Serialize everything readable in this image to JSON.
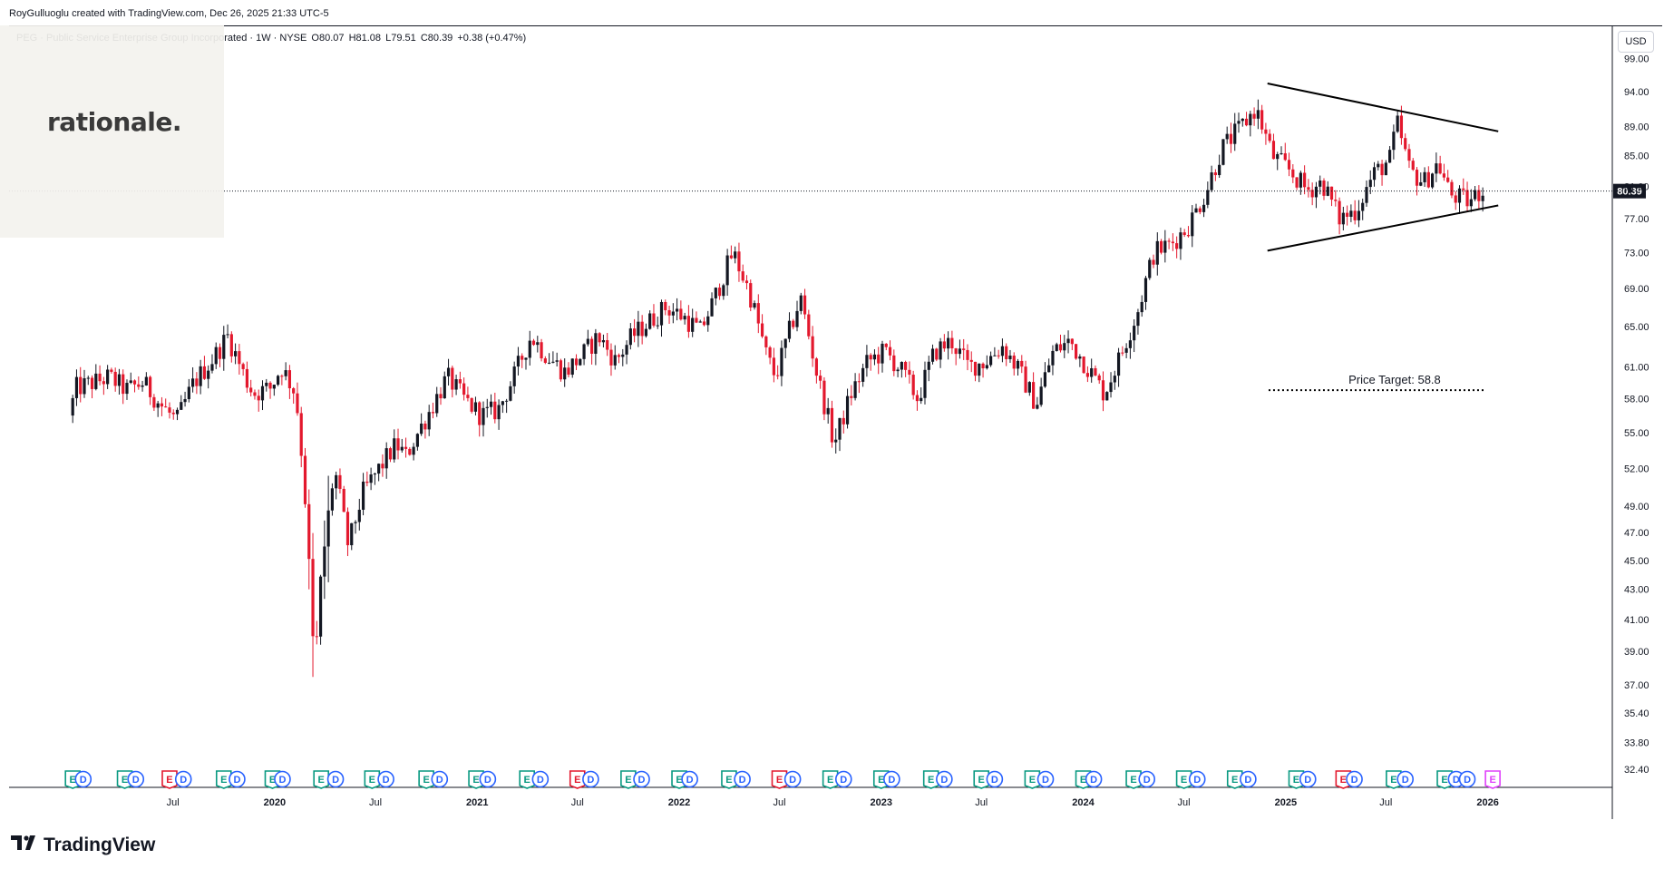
{
  "header": {
    "credit": "RoyGulluoglu created with TradingView.com, Dec 26, 2025 21:33 UTC-5"
  },
  "symbol": {
    "name": "PEG · Public Service Enterprise Group Incorporated · 1W · NYSE",
    "open": "O80.07",
    "high": "H81.08",
    "low": "L79.51",
    "close": "C80.39",
    "change": "+0.38 (+0.47%)"
  },
  "logo": {
    "text": "rationale."
  },
  "currency_button": "USD",
  "footer": {
    "brand": "TradingView"
  },
  "colors": {
    "up": "#131722",
    "down": "#e3182d",
    "grid": "#e0e3eb"
  },
  "chart_data": {
    "type": "candlestick",
    "interval": "1W",
    "yscale": "log",
    "ylim": [
      31.5,
      104
    ],
    "last_price": "80.39",
    "y_ticks": [
      "99.00",
      "94.00",
      "89.00",
      "85.00",
      "81.00",
      "77.00",
      "73.00",
      "69.00",
      "65.00",
      "61.00",
      "58.00",
      "55.00",
      "52.00",
      "49.00",
      "47.00",
      "45.00",
      "43.00",
      "41.00",
      "39.00",
      "37.00",
      "35.40",
      "33.80",
      "32.40"
    ],
    "x_ticks": [
      "Jul",
      "2020",
      "Jul",
      "2021",
      "Jul",
      "2022",
      "Jul",
      "2023",
      "Jul",
      "2024",
      "Jul",
      "2025",
      "Jul",
      "2026"
    ],
    "anchors": [
      [
        "2019-01-01",
        56.5
      ],
      [
        "2019-01-15",
        59.0
      ],
      [
        "2019-02-15",
        59.5
      ],
      [
        "2019-03-15",
        60.0
      ],
      [
        "2019-04-15",
        58.8
      ],
      [
        "2019-05-15",
        59.5
      ],
      [
        "2019-06-15",
        57.5
      ],
      [
        "2019-07-15",
        56.0
      ],
      [
        "2019-08-15",
        59.5
      ],
      [
        "2019-09-15",
        61.5
      ],
      [
        "2019-10-15",
        64.0
      ],
      [
        "2019-11-15",
        60.0
      ],
      [
        "2019-12-01",
        58.5
      ],
      [
        "2020-01-01",
        59.0
      ],
      [
        "2020-01-20",
        61.0
      ],
      [
        "2020-02-15",
        58.5
      ],
      [
        "2020-03-01",
        51.0
      ],
      [
        "2020-03-20",
        37.5
      ],
      [
        "2020-04-01",
        44.0
      ],
      [
        "2020-04-25",
        52.0
      ],
      [
        "2020-05-20",
        46.0
      ],
      [
        "2020-06-15",
        50.0
      ],
      [
        "2020-07-15",
        52.0
      ],
      [
        "2020-08-15",
        54.0
      ],
      [
        "2020-09-01",
        53.0
      ],
      [
        "2020-10-15",
        57.0
      ],
      [
        "2020-11-15",
        60.0
      ],
      [
        "2020-12-15",
        58.0
      ],
      [
        "2021-01-15",
        56.5
      ],
      [
        "2021-02-15",
        57.0
      ],
      [
        "2021-03-15",
        60.0
      ],
      [
        "2021-04-15",
        64.0
      ],
      [
        "2021-05-15",
        62.0
      ],
      [
        "2021-06-15",
        60.5
      ],
      [
        "2021-07-15",
        62.0
      ],
      [
        "2021-08-15",
        64.0
      ],
      [
        "2021-09-15",
        61.5
      ],
      [
        "2021-10-15",
        64.0
      ],
      [
        "2021-11-15",
        65.5
      ],
      [
        "2021-12-15",
        67.0
      ],
      [
        "2022-01-15",
        66.0
      ],
      [
        "2022-02-15",
        64.5
      ],
      [
        "2022-03-10",
        67.5
      ],
      [
        "2022-04-15",
        73.0
      ],
      [
        "2022-05-15",
        68.5
      ],
      [
        "2022-06-15",
        62.0
      ],
      [
        "2022-07-01",
        60.0
      ],
      [
        "2022-08-15",
        68.0
      ],
      [
        "2022-09-15",
        60.0
      ],
      [
        "2022-10-15",
        54.0
      ],
      [
        "2022-11-15",
        58.5
      ],
      [
        "2022-12-15",
        61.5
      ],
      [
        "2023-01-15",
        62.5
      ],
      [
        "2023-02-15",
        60.5
      ],
      [
        "2023-03-15",
        58.0
      ],
      [
        "2023-04-15",
        62.5
      ],
      [
        "2023-05-15",
        63.5
      ],
      [
        "2023-06-15",
        61.0
      ],
      [
        "2023-07-15",
        61.5
      ],
      [
        "2023-08-15",
        63.0
      ],
      [
        "2023-09-15",
        60.5
      ],
      [
        "2023-10-15",
        57.5
      ],
      [
        "2023-11-15",
        62.5
      ],
      [
        "2023-12-15",
        63.5
      ],
      [
        "2024-01-15",
        61.0
      ],
      [
        "2024-02-15",
        58.5
      ],
      [
        "2024-03-15",
        62.0
      ],
      [
        "2024-04-15",
        66.5
      ],
      [
        "2024-05-15",
        73.0
      ],
      [
        "2024-06-15",
        74.0
      ],
      [
        "2024-07-15",
        76.0
      ],
      [
        "2024-08-15",
        80.0
      ],
      [
        "2024-09-15",
        86.0
      ],
      [
        "2024-10-15",
        88.5
      ],
      [
        "2024-11-15",
        91.5
      ],
      [
        "2024-12-15",
        85.0
      ],
      [
        "2025-01-15",
        83.0
      ],
      [
        "2025-02-15",
        80.5
      ],
      [
        "2025-03-15",
        81.5
      ],
      [
        "2025-04-15",
        77.0
      ],
      [
        "2025-05-15",
        78.0
      ],
      [
        "2025-06-15",
        82.5
      ],
      [
        "2025-07-15",
        84.5
      ],
      [
        "2025-07-28",
        89.5
      ],
      [
        "2025-08-20",
        83.0
      ],
      [
        "2025-09-15",
        81.5
      ],
      [
        "2025-10-10",
        84.0
      ],
      [
        "2025-11-01",
        80.0
      ],
      [
        "2025-12-05",
        79.0
      ],
      [
        "2025-12-26",
        80.39
      ]
    ],
    "annotations": {
      "price_target": {
        "label": "Price Target: 58.8",
        "value": 58.8,
        "x_range": [
          "2024-12-01",
          "2025-12-26"
        ]
      },
      "triangle_upper": [
        [
          "2024-11-29",
          95.2
        ],
        [
          "2026-01-20",
          88.3
        ]
      ],
      "triangle_lower": [
        [
          "2024-11-29",
          73.2
        ],
        [
          "2026-01-20",
          78.6
        ]
      ]
    },
    "events": [
      [
        "E",
        "2019-01-01"
      ],
      [
        "D",
        "2019-01-20"
      ],
      [
        "E",
        "2019-04-05"
      ],
      [
        "D",
        "2019-04-25"
      ],
      [
        "E",
        "2019-06-25"
      ],
      [
        "D",
        "2019-07-20"
      ],
      [
        "E",
        "2019-10-01"
      ],
      [
        "D",
        "2019-10-25"
      ],
      [
        "E",
        "2019-12-28"
      ],
      [
        "D",
        "2020-01-15"
      ],
      [
        "E",
        "2020-03-25"
      ],
      [
        "D",
        "2020-04-20"
      ],
      [
        "E",
        "2020-06-25"
      ],
      [
        "D",
        "2020-07-20"
      ],
      [
        "E",
        "2020-10-01"
      ],
      [
        "D",
        "2020-10-25"
      ],
      [
        "E",
        "2020-12-30"
      ],
      [
        "D",
        "2021-01-20"
      ],
      [
        "E",
        "2021-04-01"
      ],
      [
        "D",
        "2021-04-25"
      ],
      [
        "E",
        "2021-07-01"
      ],
      [
        "D",
        "2021-07-25"
      ],
      [
        "E",
        "2021-10-01"
      ],
      [
        "D",
        "2021-10-25"
      ],
      [
        "E",
        "2022-01-01"
      ],
      [
        "D",
        "2022-01-20"
      ],
      [
        "E",
        "2022-04-01"
      ],
      [
        "D",
        "2022-04-25"
      ],
      [
        "E",
        "2022-07-01"
      ],
      [
        "D",
        "2022-07-25"
      ],
      [
        "E",
        "2022-10-01"
      ],
      [
        "D",
        "2022-10-25"
      ],
      [
        "E",
        "2023-01-01"
      ],
      [
        "D",
        "2023-01-20"
      ],
      [
        "E",
        "2023-04-01"
      ],
      [
        "D",
        "2023-04-25"
      ],
      [
        "E",
        "2023-07-01"
      ],
      [
        "D",
        "2023-07-25"
      ],
      [
        "E",
        "2023-10-01"
      ],
      [
        "D",
        "2023-10-25"
      ],
      [
        "E",
        "2024-01-01"
      ],
      [
        "D",
        "2024-01-20"
      ],
      [
        "E",
        "2024-04-01"
      ],
      [
        "D",
        "2024-04-25"
      ],
      [
        "E",
        "2024-07-01"
      ],
      [
        "D",
        "2024-07-25"
      ],
      [
        "E",
        "2024-10-01"
      ],
      [
        "D",
        "2024-10-25"
      ],
      [
        "E",
        "2025-01-20"
      ],
      [
        "D",
        "2025-02-10"
      ],
      [
        "E",
        "2025-04-15"
      ],
      [
        "D",
        "2025-05-05"
      ],
      [
        "E",
        "2025-07-15"
      ],
      [
        "D",
        "2025-08-05"
      ],
      [
        "E",
        "2025-10-15"
      ],
      [
        "D",
        "2025-11-05"
      ],
      [
        "D",
        "2025-11-25"
      ],
      [
        "E",
        "2026-01-10"
      ]
    ],
    "event_colors": {
      "E": [
        "#089981",
        "#089981",
        "#e3182d",
        "#089981",
        "#089981",
        "#089981",
        "#089981",
        "#089981",
        "#089981",
        "#089981",
        "#e3182d",
        "#089981",
        "#089981",
        "#089981",
        "#e3182d",
        "#089981",
        "#089981",
        "#089981",
        "#089981",
        "#089981",
        "#089981",
        "#089981",
        "#089981",
        "#089981",
        "#089981",
        "#e3182d",
        "#089981",
        "#089981",
        "#e040fb"
      ],
      "D": "#2962ff"
    }
  }
}
